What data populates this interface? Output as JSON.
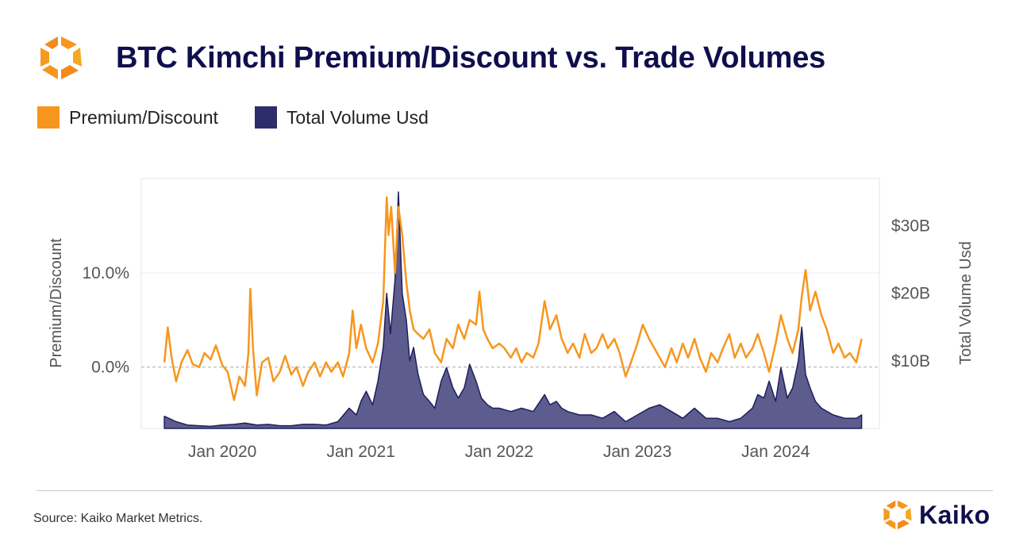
{
  "header": {
    "title": "BTC Kimchi Premium/Discount vs. Trade Volumes"
  },
  "legend": [
    {
      "label": "Premium/Discount",
      "color": "#f7961e"
    },
    {
      "label": "Total Volume Usd",
      "color": "#2e2d6b"
    }
  ],
  "footer": {
    "source": "Source: Kaiko Market Metrics.",
    "brand": "Kaiko"
  },
  "colors": {
    "premium_line": "#f7961e",
    "volume_area_fill": "#5c5c8f",
    "volume_area_stroke": "#1f1e5a",
    "title": "#0f0f4d",
    "zero_line": "#aaaaaa"
  },
  "chart_data": {
    "type": "line",
    "title": "BTC Kimchi Premium/Discount vs. Trade Volumes",
    "xlabel": "",
    "ylabel": "Premium/Discount",
    "y2label": "Total Volume Usd",
    "x_ticks": [
      "Jan 2020",
      "Jan 2021",
      "Jan 2022",
      "Jan 2023",
      "Jan 2024"
    ],
    "y_ticks": [
      {
        "value": 0,
        "label": "0.0%"
      },
      {
        "value": 10,
        "label": "10.0%"
      }
    ],
    "y2_ticks": [
      {
        "value": 10,
        "label": "$10B"
      },
      {
        "value": 20,
        "label": "$20B"
      },
      {
        "value": 30,
        "label": "$30B"
      }
    ],
    "ylim": [
      -6.5,
      20
    ],
    "y2lim": [
      0,
      37
    ],
    "xlim": [
      "2019-06-01",
      "2024-10-01"
    ],
    "zero_line": "dashed",
    "grid": "horizontal",
    "legend_position": "top-left",
    "series": [
      {
        "name": "Premium/Discount",
        "axis": "left",
        "unit": "%",
        "points": [
          [
            "2019-08-01",
            0.5
          ],
          [
            "2019-08-10",
            4.2
          ],
          [
            "2019-08-20",
            1.0
          ],
          [
            "2019-09-01",
            -1.5
          ],
          [
            "2019-09-15",
            0.5
          ],
          [
            "2019-10-01",
            1.8
          ],
          [
            "2019-10-15",
            0.3
          ],
          [
            "2019-11-01",
            0.0
          ],
          [
            "2019-11-15",
            1.5
          ],
          [
            "2019-12-01",
            0.8
          ],
          [
            "2019-12-15",
            2.3
          ],
          [
            "2020-01-01",
            0.2
          ],
          [
            "2020-01-15",
            -0.5
          ],
          [
            "2020-02-01",
            -3.5
          ],
          [
            "2020-02-15",
            -1.0
          ],
          [
            "2020-03-01",
            -2.0
          ],
          [
            "2020-03-10",
            1.5
          ],
          [
            "2020-03-15",
            8.3
          ],
          [
            "2020-03-22",
            2.0
          ],
          [
            "2020-04-01",
            -3.0
          ],
          [
            "2020-04-15",
            0.5
          ],
          [
            "2020-05-01",
            1.0
          ],
          [
            "2020-05-15",
            -1.5
          ],
          [
            "2020-06-01",
            -0.5
          ],
          [
            "2020-06-15",
            1.2
          ],
          [
            "2020-07-01",
            -0.8
          ],
          [
            "2020-07-15",
            0.0
          ],
          [
            "2020-08-01",
            -2.0
          ],
          [
            "2020-08-15",
            -0.5
          ],
          [
            "2020-09-01",
            0.5
          ],
          [
            "2020-09-15",
            -1.0
          ],
          [
            "2020-10-01",
            0.5
          ],
          [
            "2020-10-15",
            -0.5
          ],
          [
            "2020-11-01",
            0.5
          ],
          [
            "2020-11-15",
            -1.0
          ],
          [
            "2020-12-01",
            1.5
          ],
          [
            "2020-12-10",
            6.0
          ],
          [
            "2020-12-20",
            2.0
          ],
          [
            "2021-01-01",
            4.5
          ],
          [
            "2021-01-15",
            2.0
          ],
          [
            "2021-02-01",
            0.5
          ],
          [
            "2021-02-15",
            2.5
          ],
          [
            "2021-03-01",
            7.0
          ],
          [
            "2021-03-10",
            18.0
          ],
          [
            "2021-03-15",
            14.0
          ],
          [
            "2021-03-22",
            17.0
          ],
          [
            "2021-04-01",
            10.0
          ],
          [
            "2021-04-10",
            17.0
          ],
          [
            "2021-04-20",
            14.0
          ],
          [
            "2021-05-01",
            9.0
          ],
          [
            "2021-05-10",
            6.0
          ],
          [
            "2021-05-20",
            4.0
          ],
          [
            "2021-06-01",
            3.5
          ],
          [
            "2021-06-15",
            3.0
          ],
          [
            "2021-07-01",
            4.0
          ],
          [
            "2021-07-15",
            1.5
          ],
          [
            "2021-08-01",
            0.5
          ],
          [
            "2021-08-15",
            3.0
          ],
          [
            "2021-09-01",
            2.0
          ],
          [
            "2021-09-15",
            4.5
          ],
          [
            "2021-10-01",
            3.0
          ],
          [
            "2021-10-15",
            5.0
          ],
          [
            "2021-11-01",
            4.5
          ],
          [
            "2021-11-10",
            8.0
          ],
          [
            "2021-11-20",
            4.0
          ],
          [
            "2021-12-01",
            3.0
          ],
          [
            "2021-12-15",
            2.0
          ],
          [
            "2022-01-01",
            2.5
          ],
          [
            "2022-01-15",
            2.0
          ],
          [
            "2022-02-01",
            1.0
          ],
          [
            "2022-02-15",
            2.0
          ],
          [
            "2022-03-01",
            0.5
          ],
          [
            "2022-03-15",
            1.5
          ],
          [
            "2022-04-01",
            1.0
          ],
          [
            "2022-04-15",
            2.5
          ],
          [
            "2022-05-01",
            7.0
          ],
          [
            "2022-05-15",
            4.0
          ],
          [
            "2022-06-01",
            5.5
          ],
          [
            "2022-06-15",
            3.0
          ],
          [
            "2022-07-01",
            1.5
          ],
          [
            "2022-07-15",
            2.5
          ],
          [
            "2022-08-01",
            1.0
          ],
          [
            "2022-08-15",
            3.5
          ],
          [
            "2022-09-01",
            1.5
          ],
          [
            "2022-09-15",
            2.0
          ],
          [
            "2022-10-01",
            3.5
          ],
          [
            "2022-10-15",
            2.0
          ],
          [
            "2022-11-01",
            3.0
          ],
          [
            "2022-11-15",
            1.5
          ],
          [
            "2022-12-01",
            -1.0
          ],
          [
            "2022-12-15",
            0.5
          ],
          [
            "2023-01-01",
            2.5
          ],
          [
            "2023-01-15",
            4.5
          ],
          [
            "2023-02-01",
            3.0
          ],
          [
            "2023-02-15",
            2.0
          ],
          [
            "2023-03-01",
            1.0
          ],
          [
            "2023-03-15",
            0.0
          ],
          [
            "2023-04-01",
            2.0
          ],
          [
            "2023-04-15",
            0.5
          ],
          [
            "2023-05-01",
            2.5
          ],
          [
            "2023-05-15",
            1.0
          ],
          [
            "2023-06-01",
            3.0
          ],
          [
            "2023-06-15",
            1.0
          ],
          [
            "2023-07-01",
            -0.5
          ],
          [
            "2023-07-15",
            1.5
          ],
          [
            "2023-08-01",
            0.5
          ],
          [
            "2023-08-15",
            2.0
          ],
          [
            "2023-09-01",
            3.5
          ],
          [
            "2023-09-15",
            1.0
          ],
          [
            "2023-10-01",
            2.5
          ],
          [
            "2023-10-15",
            1.0
          ],
          [
            "2023-11-01",
            2.0
          ],
          [
            "2023-11-15",
            3.5
          ],
          [
            "2023-12-01",
            1.5
          ],
          [
            "2023-12-15",
            -0.5
          ],
          [
            "2024-01-01",
            2.5
          ],
          [
            "2024-01-15",
            5.5
          ],
          [
            "2024-02-01",
            3.0
          ],
          [
            "2024-02-15",
            1.5
          ],
          [
            "2024-03-01",
            4.0
          ],
          [
            "2024-03-10",
            7.5
          ],
          [
            "2024-03-20",
            10.3
          ],
          [
            "2024-04-01",
            6.0
          ],
          [
            "2024-04-15",
            8.0
          ],
          [
            "2024-05-01",
            5.5
          ],
          [
            "2024-05-15",
            4.0
          ],
          [
            "2024-06-01",
            1.5
          ],
          [
            "2024-06-15",
            2.5
          ],
          [
            "2024-07-01",
            1.0
          ],
          [
            "2024-07-15",
            1.5
          ],
          [
            "2024-08-01",
            0.5
          ],
          [
            "2024-08-15",
            3.0
          ]
        ]
      },
      {
        "name": "Total Volume Usd",
        "axis": "right",
        "unit": "$B",
        "type": "area",
        "points": [
          [
            "2019-08-01",
            1.8
          ],
          [
            "2019-09-01",
            1.0
          ],
          [
            "2019-10-01",
            0.5
          ],
          [
            "2019-11-01",
            0.4
          ],
          [
            "2019-12-01",
            0.3
          ],
          [
            "2020-01-01",
            0.5
          ],
          [
            "2020-02-01",
            0.6
          ],
          [
            "2020-03-01",
            0.8
          ],
          [
            "2020-04-01",
            0.5
          ],
          [
            "2020-05-01",
            0.6
          ],
          [
            "2020-06-01",
            0.4
          ],
          [
            "2020-07-01",
            0.4
          ],
          [
            "2020-08-01",
            0.6
          ],
          [
            "2020-09-01",
            0.6
          ],
          [
            "2020-10-01",
            0.5
          ],
          [
            "2020-11-01",
            1.0
          ],
          [
            "2020-12-01",
            3.0
          ],
          [
            "2020-12-20",
            2.0
          ],
          [
            "2021-01-01",
            4.0
          ],
          [
            "2021-01-15",
            5.5
          ],
          [
            "2021-02-01",
            3.5
          ],
          [
            "2021-02-15",
            7.0
          ],
          [
            "2021-03-01",
            12.0
          ],
          [
            "2021-03-10",
            20.0
          ],
          [
            "2021-03-20",
            14.0
          ],
          [
            "2021-04-01",
            22.0
          ],
          [
            "2021-04-10",
            35.0
          ],
          [
            "2021-04-20",
            20.0
          ],
          [
            "2021-05-01",
            16.0
          ],
          [
            "2021-05-10",
            10.0
          ],
          [
            "2021-05-20",
            12.0
          ],
          [
            "2021-06-01",
            8.0
          ],
          [
            "2021-06-15",
            5.0
          ],
          [
            "2021-07-01",
            4.0
          ],
          [
            "2021-07-15",
            3.0
          ],
          [
            "2021-08-01",
            7.0
          ],
          [
            "2021-08-15",
            9.0
          ],
          [
            "2021-09-01",
            6.0
          ],
          [
            "2021-09-15",
            4.5
          ],
          [
            "2021-10-01",
            6.0
          ],
          [
            "2021-10-15",
            9.5
          ],
          [
            "2021-11-01",
            7.0
          ],
          [
            "2021-11-15",
            4.5
          ],
          [
            "2021-12-01",
            3.5
          ],
          [
            "2021-12-15",
            3.0
          ],
          [
            "2022-01-01",
            3.0
          ],
          [
            "2022-02-01",
            2.5
          ],
          [
            "2022-03-01",
            3.0
          ],
          [
            "2022-04-01",
            2.5
          ],
          [
            "2022-05-01",
            5.0
          ],
          [
            "2022-05-15",
            3.5
          ],
          [
            "2022-06-01",
            4.0
          ],
          [
            "2022-06-15",
            3.0
          ],
          [
            "2022-07-01",
            2.5
          ],
          [
            "2022-08-01",
            2.0
          ],
          [
            "2022-09-01",
            2.0
          ],
          [
            "2022-10-01",
            1.5
          ],
          [
            "2022-11-01",
            2.5
          ],
          [
            "2022-12-01",
            1.0
          ],
          [
            "2023-01-01",
            2.0
          ],
          [
            "2023-02-01",
            3.0
          ],
          [
            "2023-03-01",
            3.5
          ],
          [
            "2023-04-01",
            2.5
          ],
          [
            "2023-05-01",
            1.5
          ],
          [
            "2023-06-01",
            3.0
          ],
          [
            "2023-07-01",
            1.5
          ],
          [
            "2023-08-01",
            1.5
          ],
          [
            "2023-09-01",
            1.0
          ],
          [
            "2023-10-01",
            1.5
          ],
          [
            "2023-11-01",
            3.0
          ],
          [
            "2023-11-15",
            5.0
          ],
          [
            "2023-12-01",
            4.5
          ],
          [
            "2023-12-15",
            7.0
          ],
          [
            "2024-01-01",
            4.0
          ],
          [
            "2024-01-15",
            9.0
          ],
          [
            "2024-02-01",
            4.5
          ],
          [
            "2024-02-15",
            6.0
          ],
          [
            "2024-03-01",
            10.0
          ],
          [
            "2024-03-10",
            15.0
          ],
          [
            "2024-03-20",
            8.0
          ],
          [
            "2024-04-01",
            6.0
          ],
          [
            "2024-04-15",
            4.0
          ],
          [
            "2024-05-01",
            3.0
          ],
          [
            "2024-06-01",
            2.0
          ],
          [
            "2024-07-01",
            1.5
          ],
          [
            "2024-08-01",
            1.5
          ],
          [
            "2024-08-15",
            2.0
          ]
        ]
      }
    ]
  }
}
